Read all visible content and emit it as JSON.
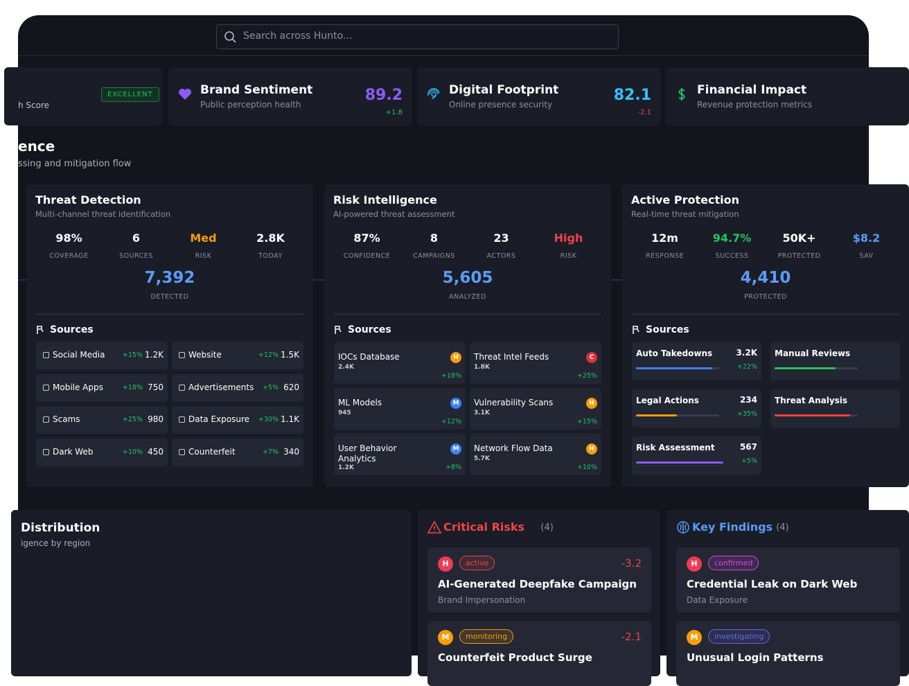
{
  "search": {
    "placeholder": "Search across Hunto..."
  },
  "metrics": [
    {
      "title": "h Score",
      "badge": "EXCELLENT"
    },
    {
      "title": "Brand Sentiment",
      "subtitle": "Public perception health",
      "value": "89.2",
      "change": "+1.8",
      "color": "#8b5cf6",
      "changeColor": "#22c55e"
    },
    {
      "title": "Digital Footprint",
      "subtitle": "Online presence security",
      "value": "82.1",
      "change": "-2.1",
      "color": "#38bdf8",
      "changeColor": "#ef4444"
    },
    {
      "title": "Financial Impact",
      "subtitle": "Revenue protection metrics"
    }
  ],
  "section": {
    "title": "ence",
    "subtitle": "ssing and mitigation flow"
  },
  "pipeline": [
    {
      "title": "Threat Detection",
      "subtitle": "Multi-channel threat identification",
      "stats": [
        {
          "value": "98%",
          "label": "COVERAGE",
          "color": "#ffffff"
        },
        {
          "value": "6",
          "label": "SOURCES",
          "color": "#ffffff"
        },
        {
          "value": "Med",
          "label": "RISK",
          "color": "#f59e0b"
        },
        {
          "value": "2.8K",
          "label": "TODAY",
          "color": "#ffffff"
        }
      ],
      "main": "7,392",
      "mainLabel": "DETECTED",
      "sourcesTitle": "Sources",
      "sources": [
        {
          "name": "Social Media",
          "change": "+15%",
          "count": "1.2K"
        },
        {
          "name": "Website",
          "change": "+12%",
          "count": "1.5K"
        },
        {
          "name": "Mobile Apps",
          "change": "+18%",
          "count": "750"
        },
        {
          "name": "Advertisements",
          "change": "+5%",
          "count": "620"
        },
        {
          "name": "Scams",
          "change": "+25%",
          "count": "980"
        },
        {
          "name": "Data Exposure",
          "change": "+30%",
          "count": "1.1K"
        },
        {
          "name": "Dark Web",
          "change": "+10%",
          "count": "450"
        },
        {
          "name": "Counterfeit",
          "change": "+7%",
          "count": "340"
        }
      ]
    },
    {
      "title": "Risk Intelligence",
      "subtitle": "AI-powered threat assessment",
      "stats": [
        {
          "value": "87%",
          "label": "CONFIDENCE",
          "color": "#ffffff"
        },
        {
          "value": "8",
          "label": "CAMPAIGNS",
          "color": "#ffffff"
        },
        {
          "value": "23",
          "label": "ACTORS",
          "color": "#ffffff"
        },
        {
          "value": "High",
          "label": "RISK",
          "color": "#ef4444"
        }
      ],
      "main": "5,605",
      "mainLabel": "ANALYZED",
      "sourcesTitle": "Sources",
      "sources": [
        {
          "name": "IOCs Database",
          "count": "2.4K",
          "level": "H",
          "levelColor": "#f59e0b",
          "change": "+18%"
        },
        {
          "name": "Threat Intel Feeds",
          "count": "1.8K",
          "level": "C",
          "levelColor": "#dc2f3c",
          "change": "+25%"
        },
        {
          "name": "ML Models",
          "count": "945",
          "level": "M",
          "levelColor": "#3b82f6",
          "change": "+12%"
        },
        {
          "name": "Vulnerability Scans",
          "count": "3.1K",
          "level": "H",
          "levelColor": "#f59e0b",
          "change": "+15%"
        },
        {
          "name": "User Behavior Analytics",
          "count": "1.2K",
          "level": "M",
          "levelColor": "#3b82f6",
          "change": "+8%"
        },
        {
          "name": "Network Flow Data",
          "count": "5.7K",
          "level": "H",
          "levelColor": "#f59e0b",
          "change": "+10%"
        }
      ]
    },
    {
      "title": "Active Protection",
      "subtitle": "Real-time threat mitigation",
      "stats": [
        {
          "value": "12m",
          "label": "RESPONSE",
          "color": "#ffffff"
        },
        {
          "value": "94.7%",
          "label": "SUCCESS",
          "color": "#22c55e"
        },
        {
          "value": "50K+",
          "label": "PROTECTED",
          "color": "#ffffff"
        },
        {
          "value": "$8.2",
          "label": "SAV",
          "color": "#5b9cf5"
        }
      ],
      "main": "4,410",
      "mainLabel": "PROTECTED",
      "sourcesTitle": "Sources",
      "sources": [
        {
          "name": "Auto Takedowns",
          "count": "3.2K",
          "change": "+22%",
          "progress": 92,
          "color": "#3b82f6"
        },
        {
          "name": "Manual Reviews",
          "progress": 73,
          "color": "#22c55e"
        },
        {
          "name": "Legal Actions",
          "count": "234",
          "change": "+35%",
          "progress": 49,
          "color": "#f59e0b"
        },
        {
          "name": "Threat Analysis",
          "progress": 91,
          "color": "#ef4444"
        },
        {
          "name": "Risk Assessment",
          "count": "567",
          "change": "+5%",
          "progress": 105,
          "color": "#8b5cf6"
        }
      ]
    }
  ],
  "distribution": {
    "title": "Distribution",
    "subtitle": "igence by region"
  },
  "critical": {
    "title": "Critical Risks",
    "count": "(4)",
    "items": [
      {
        "level": "H",
        "levelColor": "#ef3b55",
        "status": "active",
        "statusColor": "#ef4444",
        "score": "-3.2",
        "title": "AI-Generated Deepfake Campaign",
        "category": "Brand Impersonation"
      },
      {
        "level": "M",
        "levelColor": "#f59e0b",
        "status": "monitoring",
        "statusColor": "#f59e0b",
        "score": "-2.1",
        "title": "Counterfeit Product Surge"
      }
    ]
  },
  "findings": {
    "title": "Key Findings",
    "count": "(4)",
    "items": [
      {
        "level": "H",
        "levelColor": "#ef3b55",
        "status": "confirmed",
        "statusColor": "#d946ef",
        "title": "Credential Leak on Dark Web",
        "category": "Data Exposure"
      },
      {
        "level": "M",
        "levelColor": "#f59e0b",
        "status": "investigating",
        "statusColor": "#6366f1",
        "title": "Unusual Login Patterns"
      }
    ]
  }
}
